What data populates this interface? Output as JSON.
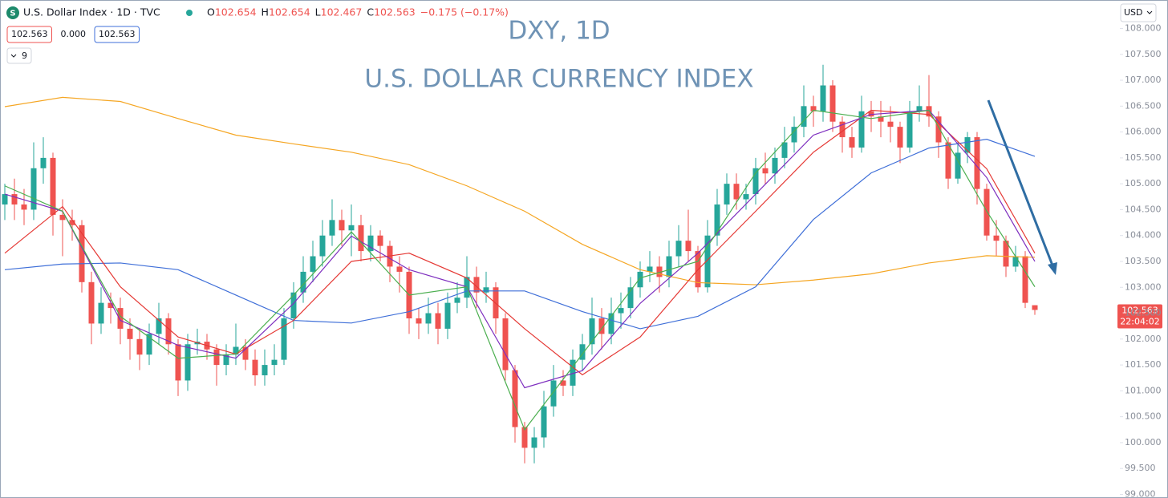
{
  "chart_data": {
    "type": "candlestick",
    "symbol": "U.S. Dollar Index · 1D · TVC",
    "ohlc_header": [
      [
        "O",
        "102.654"
      ],
      [
        "H",
        "102.654"
      ],
      [
        "L",
        "102.467"
      ],
      [
        "C",
        "102.563"
      ]
    ],
    "change": "−0.175 (−0.17%)",
    "boxes": [
      "102.563",
      "0.000",
      "102.563"
    ],
    "indicator_count": "9",
    "currency": "USD",
    "title": "DXY, 1D",
    "subtitle": "U.S. DOLLAR CURRENCY INDEX",
    "price_tag": "102.563",
    "countdown": "22:04:02",
    "up_color": "#26a69a",
    "down_color": "#ef5350",
    "open": [
      104.6,
      104.8,
      104.6,
      104.5,
      105.3,
      105.5,
      104.4,
      104.3,
      104.2,
      103.1,
      102.3,
      102.7,
      102.6,
      102.2,
      102.0,
      101.7,
      102.1,
      102.4,
      101.9,
      101.2,
      101.9,
      101.95,
      101.8,
      101.5,
      101.7,
      101.85,
      101.6,
      101.3,
      101.5,
      101.6,
      102.4,
      102.9,
      103.3,
      103.6,
      104.0,
      104.3,
      104.1,
      104.2,
      103.7,
      104.0,
      103.8,
      103.4,
      103.3,
      102.4,
      102.3,
      102.5,
      102.2,
      102.7,
      102.8,
      103.2,
      102.9,
      103.0,
      102.4,
      101.4,
      100.3,
      99.9,
      100.1,
      100.7,
      101.2,
      101.1,
      101.6,
      101.9,
      102.4,
      102.1,
      102.5,
      102.6,
      103.0,
      103.3,
      103.4,
      103.2,
      103.6,
      103.9,
      103.7,
      103.0,
      104.0,
      104.6,
      105.0,
      104.7,
      104.8,
      105.3,
      105.2,
      105.5,
      105.8,
      106.1,
      106.5,
      106.4,
      106.9,
      106.2,
      105.9,
      105.7,
      106.4,
      106.3,
      106.2,
      106.1,
      105.7,
      106.4,
      106.5,
      106.3,
      105.8,
      105.1,
      105.6,
      105.9,
      104.9,
      104.0,
      103.9,
      103.4,
      103.6,
      102.654
    ],
    "high": [
      105.0,
      105.1,
      104.9,
      105.8,
      105.9,
      105.6,
      104.7,
      104.5,
      104.3,
      103.3,
      103.0,
      102.9,
      102.8,
      102.4,
      102.2,
      102.3,
      102.7,
      102.5,
      102.0,
      102.1,
      102.2,
      102.1,
      101.9,
      101.9,
      102.3,
      102.0,
      101.8,
      101.8,
      101.9,
      102.6,
      103.1,
      103.6,
      103.9,
      104.3,
      104.7,
      104.5,
      104.6,
      104.4,
      104.2,
      104.1,
      103.9,
      103.6,
      103.4,
      102.6,
      102.8,
      102.7,
      102.9,
      103.1,
      103.6,
      103.4,
      103.3,
      103.1,
      102.5,
      101.5,
      100.4,
      100.3,
      101.0,
      101.5,
      101.4,
      101.8,
      102.1,
      102.8,
      102.6,
      102.8,
      102.9,
      103.2,
      103.5,
      103.7,
      103.6,
      103.9,
      104.2,
      104.5,
      103.8,
      104.3,
      104.9,
      105.2,
      105.2,
      105.0,
      105.5,
      105.6,
      105.7,
      106.1,
      106.3,
      106.9,
      106.7,
      107.3,
      107.0,
      106.3,
      106.1,
      106.7,
      106.6,
      106.6,
      106.5,
      106.2,
      106.6,
      106.9,
      107.1,
      106.4,
      105.9,
      105.8,
      106.0,
      106.0,
      105.0,
      104.3,
      104.0,
      103.8,
      103.7,
      102.654
    ],
    "low": [
      104.3,
      104.3,
      104.2,
      104.3,
      105.0,
      104.0,
      103.6,
      103.9,
      102.9,
      101.9,
      102.1,
      102.3,
      101.9,
      101.6,
      101.4,
      101.5,
      101.9,
      101.7,
      100.9,
      101.0,
      101.7,
      101.6,
      101.1,
      101.3,
      101.5,
      101.4,
      101.1,
      101.1,
      101.3,
      101.5,
      102.2,
      102.7,
      103.1,
      103.4,
      103.8,
      103.8,
      103.6,
      103.5,
      103.5,
      103.5,
      103.1,
      102.9,
      102.1,
      102.0,
      102.1,
      101.9,
      102.0,
      102.5,
      102.6,
      102.6,
      102.7,
      102.1,
      101.2,
      100.0,
      99.6,
      99.6,
      99.9,
      100.5,
      100.9,
      100.9,
      101.4,
      101.7,
      101.8,
      101.9,
      102.2,
      102.4,
      102.8,
      103.1,
      102.9,
      103.0,
      103.4,
      103.5,
      102.9,
      102.9,
      103.8,
      104.4,
      104.5,
      104.5,
      104.6,
      105.0,
      105.0,
      105.3,
      105.6,
      105.9,
      106.1,
      106.2,
      106.0,
      105.6,
      105.5,
      105.6,
      106.0,
      105.9,
      105.8,
      105.4,
      105.6,
      106.2,
      106.1,
      105.5,
      104.9,
      105.0,
      105.4,
      104.6,
      103.9,
      103.6,
      103.2,
      103.3,
      102.6,
      102.467
    ],
    "close": [
      104.8,
      104.6,
      104.5,
      105.3,
      105.5,
      104.4,
      104.3,
      104.2,
      103.1,
      102.3,
      102.7,
      102.6,
      102.2,
      102.0,
      101.7,
      102.1,
      102.4,
      101.9,
      101.2,
      101.9,
      101.95,
      101.8,
      101.5,
      101.7,
      101.85,
      101.6,
      101.3,
      101.5,
      101.6,
      102.4,
      102.9,
      103.3,
      103.6,
      104.0,
      104.3,
      104.1,
      104.2,
      103.7,
      104.0,
      103.8,
      103.4,
      103.3,
      102.4,
      102.3,
      102.5,
      102.2,
      102.7,
      102.8,
      103.2,
      102.9,
      103.0,
      102.4,
      101.4,
      100.3,
      99.9,
      100.1,
      100.7,
      101.2,
      101.1,
      101.6,
      101.9,
      102.4,
      102.1,
      102.5,
      102.6,
      103.0,
      103.3,
      103.4,
      103.2,
      103.6,
      103.9,
      103.7,
      103.0,
      104.0,
      104.6,
      105.0,
      104.7,
      104.8,
      105.3,
      105.2,
      105.5,
      105.8,
      106.1,
      106.5,
      106.4,
      106.9,
      106.2,
      105.9,
      105.7,
      106.4,
      106.3,
      106.2,
      106.1,
      105.7,
      106.4,
      106.5,
      106.3,
      105.8,
      105.1,
      105.6,
      105.9,
      104.9,
      104.0,
      103.9,
      103.4,
      103.6,
      102.7,
      102.563
    ],
    "ma_x": [
      0,
      6,
      12,
      18,
      24,
      30,
      36,
      42,
      48,
      54,
      60,
      66,
      72,
      78,
      84,
      90,
      96,
      102,
      107
    ],
    "moving_averages": [
      {
        "color": "#f5a623",
        "values": [
          106.49,
          106.67,
          106.59,
          106.26,
          105.94,
          105.77,
          105.61,
          105.37,
          104.96,
          104.47,
          103.83,
          103.34,
          103.09,
          103.05,
          103.14,
          103.26,
          103.47,
          103.61,
          103.58
        ]
      },
      {
        "color": "#3f6fd8",
        "values": [
          103.34,
          103.45,
          103.47,
          103.34,
          102.85,
          102.36,
          102.31,
          102.53,
          102.93,
          102.93,
          102.53,
          102.2,
          102.44,
          103.01,
          104.31,
          105.21,
          105.69,
          105.86,
          105.53
        ]
      },
      {
        "color": "#e53935",
        "values": [
          103.66,
          104.56,
          103.01,
          102.04,
          101.71,
          102.36,
          103.5,
          103.66,
          103.18,
          102.2,
          101.31,
          102.04,
          103.34,
          104.47,
          105.61,
          106.42,
          106.34,
          105.29,
          103.66
        ]
      },
      {
        "color": "#7e2fbf",
        "values": [
          104.8,
          104.47,
          102.36,
          101.88,
          101.63,
          102.69,
          103.99,
          103.34,
          103.01,
          101.06,
          101.39,
          102.69,
          103.66,
          104.8,
          105.94,
          106.34,
          106.42,
          105.12,
          103.5
        ]
      },
      {
        "color": "#4caf50",
        "values": [
          104.96,
          104.47,
          102.44,
          101.63,
          101.71,
          102.85,
          104.07,
          102.85,
          103.01,
          100.25,
          101.71,
          103.18,
          103.5,
          105.21,
          106.42,
          106.26,
          106.42,
          104.47,
          103.01
        ]
      }
    ],
    "ylim": [
      98.93,
      108.55
    ],
    "yticks": [
      {
        "value": 108,
        "label": "108.000"
      },
      {
        "value": 107.5,
        "label": "107.500"
      },
      {
        "value": 107,
        "label": "107.000"
      },
      {
        "value": 106.5,
        "label": "106.500"
      },
      {
        "value": 106,
        "label": "106.000"
      },
      {
        "value": 105.5,
        "label": "105.500"
      },
      {
        "value": 105,
        "label": "105.000"
      },
      {
        "value": 104.5,
        "label": "104.500"
      },
      {
        "value": 104,
        "label": "104.000"
      },
      {
        "value": 103.5,
        "label": "103.500"
      },
      {
        "value": 103,
        "label": "103.000"
      },
      {
        "value": 102.5,
        "label": "102.500"
      },
      {
        "value": 102,
        "label": "102.000"
      },
      {
        "value": 101.5,
        "label": "101.500"
      },
      {
        "value": 101,
        "label": "101.000"
      },
      {
        "value": 100.5,
        "label": "100.500"
      },
      {
        "value": 100,
        "label": "100.000"
      },
      {
        "value": 99.5,
        "label": "99.500"
      },
      {
        "value": 99,
        "label": "99.000"
      }
    ]
  }
}
